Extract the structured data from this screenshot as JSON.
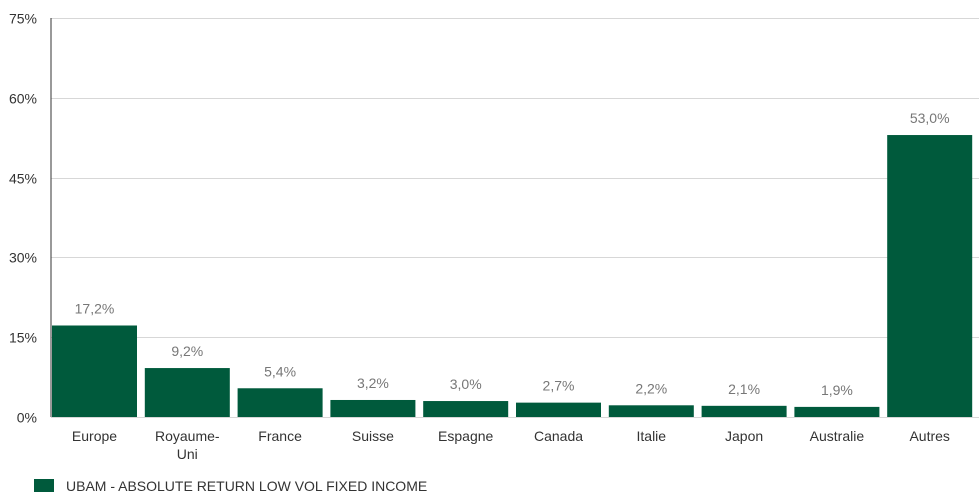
{
  "chart_data": {
    "type": "bar",
    "categories": [
      "Europe",
      "Royaume-Uni",
      "France",
      "Suisse",
      "Espagne",
      "Canada",
      "Italie",
      "Japon",
      "Australie",
      "Autres"
    ],
    "category_lines": [
      [
        "Europe"
      ],
      [
        "Royaume-",
        "Uni"
      ],
      [
        "France"
      ],
      [
        "Suisse"
      ],
      [
        "Espagne"
      ],
      [
        "Canada"
      ],
      [
        "Italie"
      ],
      [
        "Japon"
      ],
      [
        "Australie"
      ],
      [
        "Autres"
      ]
    ],
    "series": [
      {
        "name": "UBAM - ABSOLUTE RETURN LOW VOL FIXED INCOME",
        "values": [
          17.2,
          9.2,
          5.4,
          3.2,
          3.0,
          2.7,
          2.2,
          2.1,
          1.9,
          53.0
        ],
        "labels": [
          "17,2%",
          "9,2%",
          "5,4%",
          "3,2%",
          "3,0%",
          "2,7%",
          "2,2%",
          "2,1%",
          "1,9%",
          "53,0%"
        ],
        "color": "#005a3c"
      }
    ],
    "ylim": [
      0,
      75
    ],
    "yticks": [
      0,
      15,
      30,
      45,
      60,
      75
    ],
    "ytick_labels": [
      "0%",
      "15%",
      "30%",
      "45%",
      "60%",
      "75%"
    ],
    "grid": true,
    "legend_position": "bottom-left"
  }
}
